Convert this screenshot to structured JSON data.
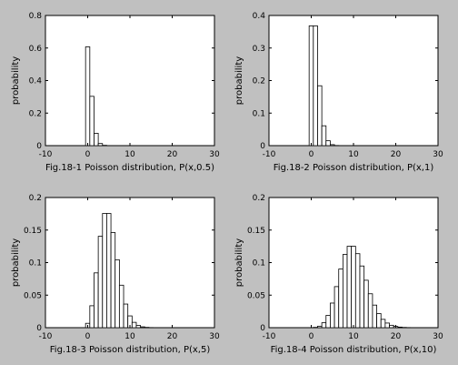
{
  "background_color": "#c0c0c0",
  "plot_background": "#ffffff",
  "chart_data": [
    {
      "type": "bar",
      "lambda": 0.5,
      "caption": "Fig.18-1 Poisson distribution, P(x,0.5)",
      "ylabel": "probability",
      "xlim": [
        -10,
        30
      ],
      "ylim": [
        0,
        0.8
      ],
      "xticks": [
        "-10",
        "0",
        "10",
        "20",
        "30"
      ],
      "yticks": [
        "0",
        "0.2",
        "0.4",
        "0.6",
        "0.8"
      ],
      "x": [
        0,
        1,
        2,
        3,
        4,
        5,
        6,
        7,
        8,
        9,
        10,
        11,
        12,
        13,
        14,
        15,
        16,
        17,
        18,
        19,
        20,
        21,
        22,
        23,
        24,
        25
      ],
      "values": [
        0.607,
        0.303,
        0.076,
        0.013,
        0.002,
        0.0002,
        1e-05,
        0.0,
        0.0,
        0.0,
        0.0,
        0.0,
        0.0,
        0.0,
        0.0,
        0.0,
        0.0,
        0.0,
        0.0,
        0.0,
        0.0,
        0.0,
        0.0,
        0.0,
        0.0,
        0.0
      ]
    },
    {
      "type": "bar",
      "lambda": 1,
      "caption": "Fig.18-2 Poisson distribution, P(x,1)",
      "ylabel": "probability",
      "xlim": [
        -10,
        30
      ],
      "ylim": [
        0,
        0.4
      ],
      "xticks": [
        "-10",
        "0",
        "10",
        "20",
        "30"
      ],
      "yticks": [
        "0",
        "0.1",
        "0.2",
        "0.3",
        "0.4"
      ],
      "x": [
        0,
        1,
        2,
        3,
        4,
        5,
        6,
        7,
        8,
        9,
        10,
        11,
        12,
        13,
        14,
        15,
        16,
        17,
        18,
        19,
        20,
        21,
        22,
        23,
        24,
        25
      ],
      "values": [
        0.368,
        0.368,
        0.184,
        0.061,
        0.015,
        0.003,
        0.0005,
        7e-05,
        0.0,
        0.0,
        0.0,
        0.0,
        0.0,
        0.0,
        0.0,
        0.0,
        0.0,
        0.0,
        0.0,
        0.0,
        0.0,
        0.0,
        0.0,
        0.0,
        0.0,
        0.0
      ]
    },
    {
      "type": "bar",
      "lambda": 5,
      "caption": "Fig.18-3 Poisson distribution, P(x,5)",
      "ylabel": "probability",
      "xlim": [
        -10,
        30
      ],
      "ylim": [
        0,
        0.2
      ],
      "xticks": [
        "-10",
        "0",
        "10",
        "20",
        "30"
      ],
      "yticks": [
        "0",
        "0.05",
        "0.1",
        "0.15",
        "0.2"
      ],
      "x": [
        0,
        1,
        2,
        3,
        4,
        5,
        6,
        7,
        8,
        9,
        10,
        11,
        12,
        13,
        14,
        15,
        16,
        17,
        18,
        19,
        20,
        21,
        22,
        23,
        24,
        25
      ],
      "values": [
        0.0067,
        0.0337,
        0.0842,
        0.1404,
        0.1755,
        0.1755,
        0.1462,
        0.1044,
        0.0653,
        0.0363,
        0.0181,
        0.0082,
        0.0034,
        0.0013,
        0.0005,
        0.0002,
        0.0,
        0.0,
        0.0,
        0.0,
        0.0,
        0.0,
        0.0,
        0.0,
        0.0,
        0.0
      ]
    },
    {
      "type": "bar",
      "lambda": 10,
      "caption": "Fig.18-4 Poisson distribution, P(x,10)",
      "ylabel": "probability",
      "xlim": [
        -10,
        30
      ],
      "ylim": [
        0,
        0.2
      ],
      "xticks": [
        "-10",
        "0",
        "10",
        "20",
        "30"
      ],
      "yticks": [
        "0",
        "0.05",
        "0.1",
        "0.15",
        "0.2"
      ],
      "x": [
        0,
        1,
        2,
        3,
        4,
        5,
        6,
        7,
        8,
        9,
        10,
        11,
        12,
        13,
        14,
        15,
        16,
        17,
        18,
        19,
        20,
        21,
        22,
        23,
        24,
        25
      ],
      "values": [
        5e-05,
        0.0005,
        0.0023,
        0.0076,
        0.0189,
        0.0378,
        0.0631,
        0.0901,
        0.1126,
        0.1251,
        0.1251,
        0.1137,
        0.0948,
        0.0729,
        0.0521,
        0.0347,
        0.0217,
        0.0128,
        0.0071,
        0.0037,
        0.0019,
        0.0009,
        0.0004,
        0.0002,
        0.0001,
        4e-05
      ]
    }
  ]
}
